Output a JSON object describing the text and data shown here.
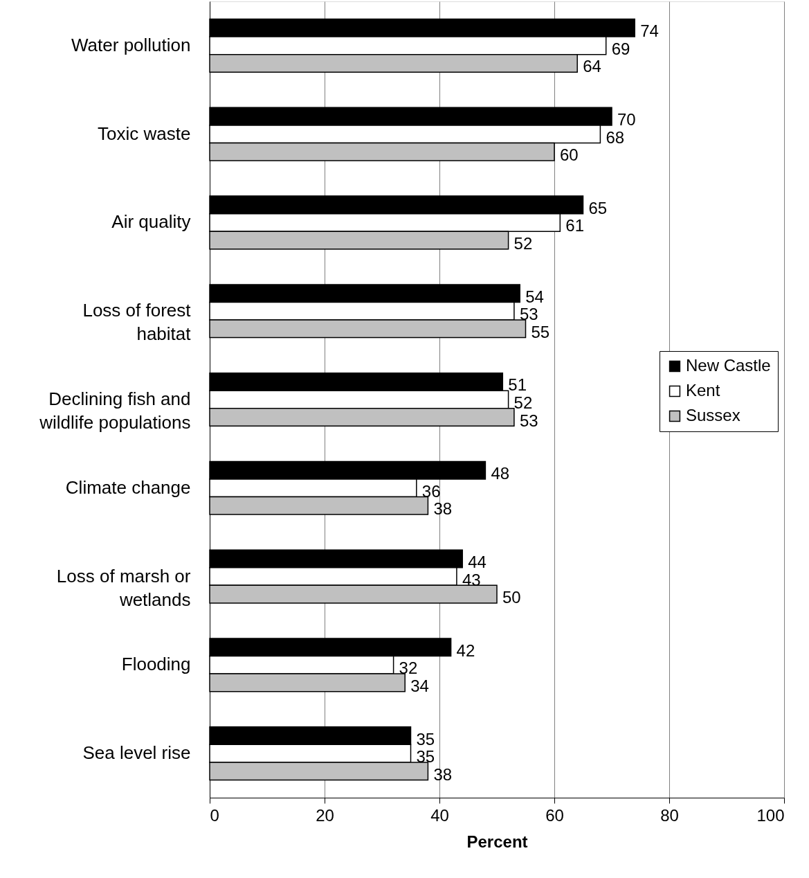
{
  "chart_data": {
    "type": "bar",
    "orientation": "horizontal",
    "xlabel": "Percent",
    "categories": [
      "Water pollution",
      "Toxic waste",
      "Air quality",
      "Loss of forest habitat",
      "Declining fish and wildlife populations",
      "Climate change",
      "Loss of marsh or wetlands",
      "Flooding",
      "Sea level rise"
    ],
    "series": [
      {
        "name": "New Castle",
        "color": "#000000",
        "values": [
          74,
          70,
          65,
          54,
          51,
          48,
          44,
          42,
          35
        ]
      },
      {
        "name": "Kent",
        "color": "#ffffff",
        "values": [
          69,
          68,
          61,
          53,
          52,
          36,
          43,
          32,
          35
        ]
      },
      {
        "name": "Sussex",
        "color": "#c0c0c0",
        "values": [
          64,
          60,
          52,
          55,
          53,
          38,
          50,
          34,
          38
        ]
      }
    ],
    "xlim": [
      0,
      100
    ],
    "xticks": [
      0,
      20,
      40,
      60,
      80,
      100
    ],
    "grid": "x",
    "legend": "right",
    "data_labels": true
  }
}
